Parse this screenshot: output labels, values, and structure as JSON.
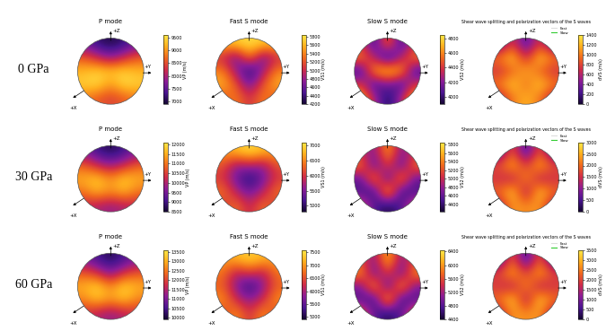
{
  "chart_data": [
    {
      "type": "heatmap",
      "title": "P mode",
      "row_label": "0 GPa",
      "axis_labels": [
        "+Z",
        "+Y",
        "+X"
      ],
      "colorbar": {
        "label": "VP (m/s)",
        "range": [
          6900,
          9600
        ],
        "ticks": [
          7000,
          7500,
          8000,
          8500,
          9000,
          9500
        ]
      },
      "cells": [
        [
          7600,
          7200,
          7000,
          7200,
          7600
        ],
        [
          8600,
          8200,
          7800,
          8200,
          8600
        ],
        [
          9200,
          9400,
          9300,
          9400,
          9200
        ],
        [
          9400,
          9500,
          9000,
          9500,
          9400
        ],
        [
          8800,
          8600,
          8400,
          8600,
          8800
        ]
      ]
    },
    {
      "type": "heatmap",
      "title": "Fast S mode",
      "axis_labels": [
        "+Z",
        "+Y",
        "+X"
      ],
      "colorbar": {
        "label": "VS1 (m/s)",
        "range": [
          4200,
          5850
        ],
        "ticks": [
          4200,
          4400,
          4600,
          4800,
          5000,
          5200,
          5400,
          5600,
          5800
        ]
      },
      "cells": [
        [
          5600,
          5700,
          5800,
          5700,
          5600
        ],
        [
          5000,
          4600,
          5400,
          4600,
          5000
        ],
        [
          5400,
          4800,
          4300,
          4800,
          5400
        ],
        [
          5600,
          5200,
          4600,
          5200,
          5600
        ],
        [
          5200,
          5400,
          5000,
          5400,
          5200
        ]
      ]
    },
    {
      "type": "heatmap",
      "title": "Slow S mode",
      "axis_labels": [
        "+Z",
        "+Y",
        "+X"
      ],
      "colorbar": {
        "label": "VS2 (m/s)",
        "range": [
          3900,
          4850
        ],
        "ticks": [
          4000,
          4200,
          4400,
          4600,
          4800
        ]
      },
      "cells": [
        [
          4400,
          4000,
          4600,
          4000,
          4400
        ],
        [
          4600,
          4300,
          3900,
          4300,
          4600
        ],
        [
          4000,
          4700,
          4800,
          4700,
          4000
        ],
        [
          4400,
          4000,
          4200,
          4000,
          4400
        ],
        [
          4700,
          4300,
          3900,
          4300,
          4700
        ]
      ]
    },
    {
      "type": "heatmap",
      "title": "Shear wave splitting and polarization vectors of the S waves",
      "axis_labels": [
        "+Z",
        "+Y",
        "+X"
      ],
      "legend": "upper right",
      "series": [
        {
          "name": "Fast",
          "color": "#dddddd"
        },
        {
          "name": "Slow",
          "color": "#33cc33"
        }
      ],
      "colorbar": {
        "label": "dVS (m/s)",
        "range": [
          0,
          1400
        ],
        "ticks": [
          0,
          200,
          400,
          600,
          800,
          1000,
          1200,
          1400
        ]
      },
      "cells": [
        [
          300,
          800,
          200,
          800,
          300
        ],
        [
          1000,
          1300,
          600,
          1300,
          1000
        ],
        [
          700,
          900,
          1200,
          900,
          700
        ],
        [
          1000,
          1300,
          900,
          1300,
          1000
        ],
        [
          600,
          1000,
          1200,
          1000,
          600
        ]
      ]
    },
    {
      "type": "heatmap",
      "title": "P mode",
      "row_label": "30 GPa",
      "axis_labels": [
        "+Z",
        "+Y",
        "+X"
      ],
      "colorbar": {
        "label": "VP (m/s)",
        "range": [
          8500,
          12100
        ],
        "ticks": [
          8500,
          9000,
          9500,
          10000,
          10500,
          11000,
          11500,
          12000
        ]
      },
      "cells": [
        [
          9600,
          9000,
          8700,
          9000,
          9600
        ],
        [
          10800,
          10200,
          9800,
          10200,
          10800
        ],
        [
          11500,
          11800,
          11200,
          11800,
          11500
        ],
        [
          11000,
          11600,
          11200,
          11600,
          11000
        ],
        [
          10200,
          10000,
          9800,
          10000,
          10200
        ]
      ]
    },
    {
      "type": "heatmap",
      "title": "Fast S mode",
      "axis_labels": [
        "+Z",
        "+Y",
        "+X"
      ],
      "colorbar": {
        "label": "VS1 (m/s)",
        "range": [
          4800,
          7100
        ],
        "ticks": [
          5000,
          5500,
          6000,
          6500,
          7000
        ]
      },
      "cells": [
        [
          6600,
          6800,
          7000,
          6800,
          6600
        ],
        [
          6200,
          5600,
          5800,
          5600,
          6200
        ],
        [
          6000,
          5400,
          4900,
          5400,
          6000
        ],
        [
          6400,
          5800,
          5400,
          5800,
          6400
        ],
        [
          6000,
          6400,
          5800,
          6400,
          6000
        ]
      ]
    },
    {
      "type": "heatmap",
      "title": "Slow S mode",
      "axis_labels": [
        "+Z",
        "+Y",
        "+X"
      ],
      "colorbar": {
        "label": "VS2 (m/s)",
        "range": [
          4230,
          5850
        ],
        "ticks": [
          4400,
          4600,
          4800,
          5000,
          5200,
          5400,
          5600,
          5800
        ]
      },
      "cells": [
        [
          5000,
          4700,
          5600,
          4700,
          5000
        ],
        [
          5400,
          4500,
          5200,
          4500,
          5400
        ],
        [
          4600,
          5600,
          4400,
          5600,
          4600
        ],
        [
          4500,
          4400,
          5800,
          4400,
          4500
        ],
        [
          5200,
          4500,
          4300,
          4500,
          5200
        ]
      ]
    },
    {
      "type": "heatmap",
      "title": "Shear wave splitting and polarization vectors of the S waves",
      "axis_labels": [
        "+Z",
        "+Y",
        "+X"
      ],
      "legend": "upper right",
      "series": [
        {
          "name": "Fast",
          "color": "#dddddd"
        },
        {
          "name": "Slow",
          "color": "#33cc33"
        }
      ],
      "colorbar": {
        "label": "dVS (m/s)",
        "range": [
          0,
          3000
        ],
        "ticks": [
          0,
          500,
          1000,
          1500,
          2000,
          2500,
          3000
        ]
      },
      "cells": [
        [
          500,
          2000,
          300,
          2000,
          500
        ],
        [
          1800,
          2600,
          1500,
          2600,
          1800
        ],
        [
          1500,
          1200,
          2400,
          1200,
          1500
        ],
        [
          2000,
          2800,
          1000,
          2800,
          2000
        ],
        [
          1200,
          2400,
          2200,
          2400,
          1200
        ]
      ]
    },
    {
      "type": "heatmap",
      "title": "P mode",
      "row_label": "60 GPa",
      "axis_labels": [
        "+Z",
        "+Y",
        "+X"
      ],
      "colorbar": {
        "label": "VP (m/s)",
        "range": [
          9900,
          13600
        ],
        "ticks": [
          10000,
          10500,
          11000,
          11500,
          12000,
          12500,
          13000,
          13500
        ]
      },
      "cells": [
        [
          11000,
          10500,
          10100,
          10500,
          11000
        ],
        [
          12200,
          11800,
          11000,
          11800,
          12200
        ],
        [
          13000,
          13400,
          12600,
          13400,
          13000
        ],
        [
          12600,
          13200,
          12800,
          13200,
          12600
        ],
        [
          11800,
          11500,
          11200,
          11500,
          11800
        ]
      ]
    },
    {
      "type": "heatmap",
      "title": "Fast S mode",
      "axis_labels": [
        "+Z",
        "+Y",
        "+X"
      ],
      "colorbar": {
        "label": "VS1 (m/s)",
        "range": [
          4900,
          7600
        ],
        "ticks": [
          5000,
          5500,
          6000,
          6500,
          7000,
          7500
        ]
      },
      "cells": [
        [
          7000,
          7200,
          7400,
          7200,
          7000
        ],
        [
          6800,
          6000,
          6400,
          6000,
          6800
        ],
        [
          6600,
          5800,
          5100,
          5800,
          6600
        ],
        [
          7000,
          6200,
          5800,
          6200,
          7000
        ],
        [
          6400,
          7000,
          6200,
          7000,
          6400
        ]
      ]
    },
    {
      "type": "heatmap",
      "title": "Slow S mode",
      "axis_labels": [
        "+Z",
        "+Y",
        "+X"
      ],
      "colorbar": {
        "label": "VS2 (m/s)",
        "range": [
          4400,
          6450
        ],
        "ticks": [
          4400,
          4800,
          5200,
          5600,
          6000,
          6400
        ]
      },
      "cells": [
        [
          5600,
          5000,
          6300,
          5000,
          5600
        ],
        [
          6000,
          4800,
          5600,
          4800,
          6000
        ],
        [
          5000,
          6200,
          4600,
          6200,
          5000
        ],
        [
          4800,
          4600,
          6400,
          4600,
          4800
        ],
        [
          5800,
          4800,
          4500,
          4800,
          5800
        ]
      ]
    },
    {
      "type": "heatmap",
      "title": "Shear wave splitting and polarization vectors of the S waves",
      "axis_labels": [
        "+Z",
        "+Y",
        "+X"
      ],
      "legend": "upper right",
      "series": [
        {
          "name": "Fast",
          "color": "#dddddd"
        },
        {
          "name": "Slow",
          "color": "#33cc33"
        }
      ],
      "colorbar": {
        "label": "dVS (m/s)",
        "range": [
          0,
          3500
        ],
        "ticks": [
          0,
          500,
          1000,
          1500,
          2000,
          2500,
          3000,
          3500
        ]
      },
      "cells": [
        [
          500,
          2400,
          300,
          2400,
          500
        ],
        [
          2000,
          3000,
          1800,
          3000,
          2000
        ],
        [
          1800,
          1400,
          2800,
          1400,
          1800
        ],
        [
          2400,
          3300,
          1200,
          3300,
          2400
        ],
        [
          1400,
          2800,
          2600,
          2800,
          1400
        ]
      ]
    }
  ]
}
